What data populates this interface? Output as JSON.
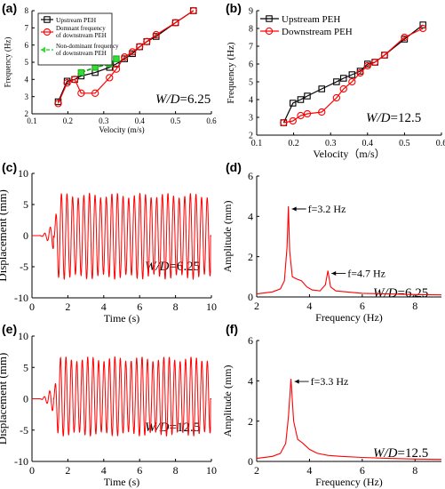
{
  "panels": [
    "(a)",
    "(b)",
    "(c)",
    "(d)",
    "(e)",
    "(f)"
  ],
  "chart_data": [
    {
      "panel": "(a)",
      "type": "line",
      "xlabel": "Velocity (m/s)",
      "ylabel": "Frequency (Hz)",
      "xlim": [
        0.1,
        0.6
      ],
      "ylim": [
        2,
        8
      ],
      "xticks": [
        "0.1",
        "0.2",
        "0.3",
        "0.4",
        "0.5",
        "0.6"
      ],
      "yticks": [
        "2",
        "3",
        "4",
        "5",
        "6",
        "7",
        "8"
      ],
      "annotation": {
        "var": "W/D",
        "value": "=6.25"
      },
      "legend": [
        "Upstream PEH",
        "Domnant frequency of downstream PEH",
        "Non-dominant frequency of downstream PEH"
      ],
      "series": [
        {
          "name": "Upstream PEH",
          "color": "#000000",
          "marker": "square",
          "x": [
            0.173,
            0.198,
            0.219,
            0.237,
            0.276,
            0.316,
            0.335,
            0.358,
            0.38,
            0.4,
            0.42,
            0.446,
            0.5,
            0.55
          ],
          "y": [
            2.7,
            3.9,
            4.0,
            4.2,
            4.4,
            4.7,
            4.9,
            5.2,
            5.5,
            5.9,
            6.2,
            6.5,
            7.3,
            8.0
          ]
        },
        {
          "name": "Domnant frequency of downstream PEH",
          "color": "#ff0000",
          "marker": "circle",
          "x": [
            0.173,
            0.198,
            0.219,
            0.237,
            0.276,
            0.316,
            0.335,
            0.358,
            0.38,
            0.4,
            0.42,
            0.446,
            0.5,
            0.55
          ],
          "y": [
            2.6,
            3.8,
            4.0,
            3.2,
            3.2,
            4.1,
            4.6,
            5.3,
            5.6,
            5.9,
            6.2,
            6.6,
            7.3,
            8.0
          ]
        },
        {
          "name": "Non-dominant frequency of downstream PEH",
          "color": "#33dd33",
          "marker": "square",
          "x": [
            0.237,
            0.276,
            0.316,
            0.335
          ],
          "y": [
            4.4,
            4.7,
            4.9,
            5.2
          ]
        }
      ]
    },
    {
      "panel": "(b)",
      "type": "line",
      "xlabel": "Velocity（m/s）",
      "ylabel": "Frequency (Hz)",
      "xlim": [
        0.1,
        0.6
      ],
      "ylim": [
        2,
        9
      ],
      "xticks": [
        "0.1",
        "0.2",
        "0.3",
        "0.4",
        "0.5",
        "0.6"
      ],
      "yticks": [
        "2",
        "3",
        "4",
        "5",
        "6",
        "7",
        "8",
        "9"
      ],
      "annotation": {
        "var": "W/D",
        "value": "=12.5"
      },
      "legend": [
        "Upstream PEH",
        "Downstream PEH"
      ],
      "series": [
        {
          "name": "Upstream PEH",
          "color": "#000000",
          "marker": "square",
          "x": [
            0.173,
            0.198,
            0.219,
            0.237,
            0.276,
            0.316,
            0.335,
            0.358,
            0.38,
            0.4,
            0.42,
            0.446,
            0.5,
            0.55
          ],
          "y": [
            2.7,
            3.8,
            4.0,
            4.2,
            4.6,
            5.0,
            5.2,
            5.4,
            5.6,
            6.0,
            6.1,
            6.5,
            7.4,
            8.2
          ]
        },
        {
          "name": "Downstream PEH",
          "color": "#ff0000",
          "marker": "circle",
          "x": [
            0.173,
            0.198,
            0.219,
            0.237,
            0.276,
            0.316,
            0.335,
            0.358,
            0.38,
            0.4,
            0.42,
            0.446,
            0.5,
            0.55
          ],
          "y": [
            2.7,
            2.8,
            3.1,
            3.2,
            3.3,
            4.1,
            4.6,
            5.0,
            5.5,
            5.9,
            6.1,
            6.5,
            7.5,
            8.0
          ]
        }
      ]
    },
    {
      "panel": "(c)",
      "type": "line",
      "xlabel": "Time (s)",
      "ylabel": "Displacement (mm)",
      "xlim": [
        0,
        10
      ],
      "ylim": [
        -10,
        10
      ],
      "xticks": [
        "0",
        "2",
        "4",
        "6",
        "8",
        "10"
      ],
      "yticks": [
        "-10",
        "-5",
        "0",
        "5",
        "10"
      ],
      "annotation": {
        "var": "W/D",
        "value": "=6.25"
      },
      "signal": {
        "start": 1.2,
        "end": 9.95,
        "freq": 3.2,
        "pos_amp": 6.4,
        "neg_amp": 6.6,
        "color": "#ff0000"
      }
    },
    {
      "panel": "(d)",
      "type": "line",
      "xlabel": "Frequency (Hz)",
      "ylabel": "Amplitude (mm)",
      "xlim": [
        2,
        9
      ],
      "ylim": [
        0,
        6
      ],
      "xticks": [
        "2",
        "4",
        "6",
        "8"
      ],
      "yticks": [
        "0",
        "2",
        "4",
        "6"
      ],
      "annotation": {
        "var": "W/D",
        "value": "=6.25"
      },
      "peaks": [
        {
          "label": "f=3.2 Hz",
          "x": 3.2,
          "y": 4.5
        },
        {
          "label": "f=4.7 Hz",
          "x": 4.7,
          "y": 1.3
        }
      ],
      "spectrum": {
        "x": [
          2,
          2.6,
          2.9,
          3.05,
          3.15,
          3.2,
          3.25,
          3.35,
          3.5,
          3.7,
          3.9,
          4.1,
          4.4,
          4.6,
          4.7,
          4.8,
          5.0,
          5.4,
          6.0,
          7.0,
          8.0,
          9.0
        ],
        "y": [
          0.15,
          0.25,
          0.4,
          0.8,
          2.5,
          4.5,
          2.3,
          1.0,
          0.9,
          0.8,
          0.5,
          0.35,
          0.3,
          0.6,
          1.3,
          0.5,
          0.3,
          0.25,
          0.18,
          0.15,
          0.12,
          0.1
        ],
        "color": "#ff0000"
      }
    },
    {
      "panel": "(e)",
      "type": "line",
      "xlabel": "Time (s)",
      "ylabel": "Displacement (mm)",
      "xlim": [
        0,
        10
      ],
      "ylim": [
        -10,
        10
      ],
      "xticks": [
        "0",
        "2",
        "4",
        "6",
        "8",
        "10"
      ],
      "yticks": [
        "-10",
        "-5",
        "0",
        "5",
        "10"
      ],
      "annotation": {
        "var": "W/D",
        "value": "=12.5"
      },
      "signal": {
        "start": 1.2,
        "end": 9.95,
        "freq": 3.3,
        "pos_amp": 6.3,
        "neg_amp": 5.6,
        "color": "#ff0000"
      }
    },
    {
      "panel": "(f)",
      "type": "line",
      "xlabel": "Frequency (Hz)",
      "ylabel": "Amplitude (mm)",
      "xlim": [
        2,
        9
      ],
      "ylim": [
        0,
        6
      ],
      "xticks": [
        "2",
        "4",
        "6",
        "8"
      ],
      "yticks": [
        "0",
        "2",
        "4",
        "6"
      ],
      "annotation": {
        "var": "W/D",
        "value": "=12.5"
      },
      "peaks": [
        {
          "label": "f=3.3 Hz",
          "x": 3.3,
          "y": 4.1
        }
      ],
      "spectrum": {
        "x": [
          2,
          2.6,
          2.9,
          3.1,
          3.2,
          3.3,
          3.4,
          3.55,
          3.75,
          4.0,
          4.3,
          4.7,
          5.2,
          6.0,
          7.0,
          8.0,
          9.0
        ],
        "y": [
          0.15,
          0.25,
          0.4,
          0.9,
          2.2,
          4.1,
          2.0,
          1.1,
          0.9,
          0.6,
          0.4,
          0.3,
          0.25,
          0.2,
          0.15,
          0.12,
          0.1
        ],
        "color": "#ff0000"
      }
    }
  ]
}
